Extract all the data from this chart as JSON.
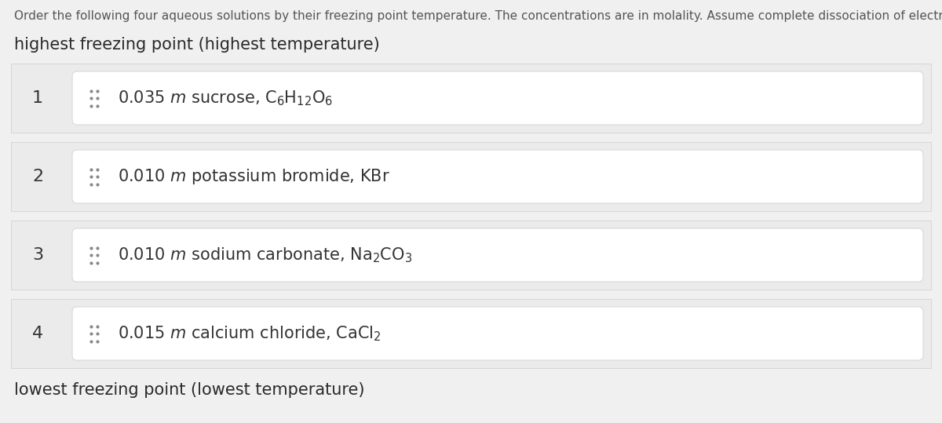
{
  "title_text": "Order the following four aqueous solutions by their freezing point temperature. The concentrations are in molality. Assume complete dissociation of electrolytes.",
  "header_label": "highest freezing point (highest temperature)",
  "footer_label": "lowest freezing point (lowest temperature)",
  "rows": [
    {
      "number": "1",
      "label": "0.035 $\\it{m}$ sucrose, C$_6$H$_{12}$O$_6$"
    },
    {
      "number": "2",
      "label": "0.010 $\\it{m}$ potassium bromide, KBr"
    },
    {
      "number": "3",
      "label": "0.010 $\\it{m}$ sodium carbonate, Na$_2$CO$_3$"
    },
    {
      "number": "4",
      "label": "0.015 $\\it{m}$ calcium chloride, CaCl$_2$"
    }
  ],
  "page_bg_color": "#f0f0f0",
  "row_outer_bg": "#ebebeb",
  "row_inner_bg": "#ffffff",
  "row_border_color": "#cccccc",
  "inner_border_color": "#d8d8d8",
  "text_color": "#333333",
  "title_color": "#555555",
  "header_footer_color": "#2a2a2a",
  "dot_color": "#888888",
  "font_size_title": 11,
  "font_size_header": 15,
  "font_size_number": 16,
  "font_size_label": 15
}
